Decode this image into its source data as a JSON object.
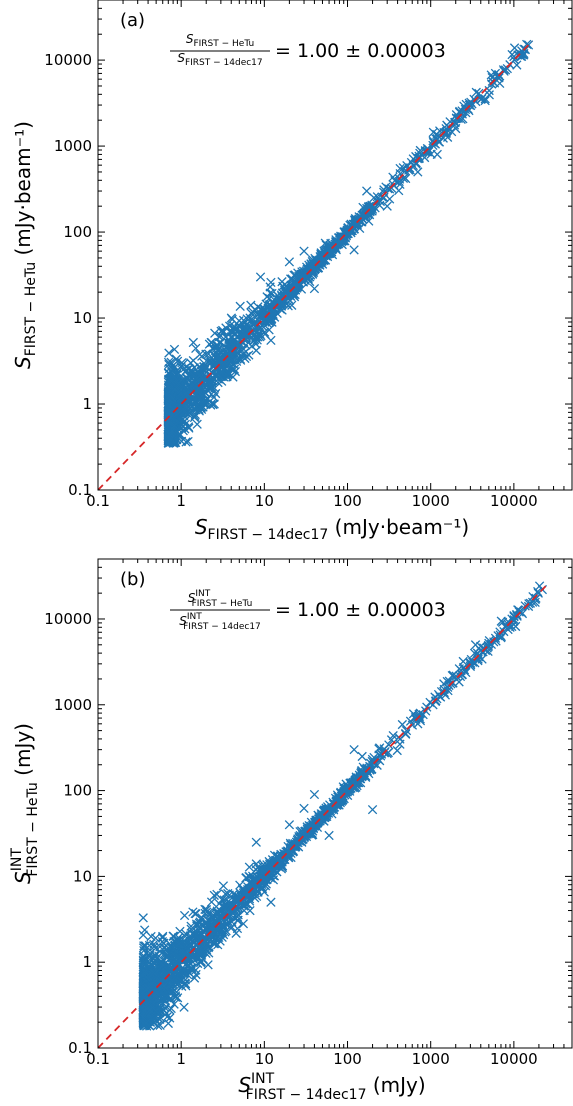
{
  "chart_data": [
    {
      "type": "scatter",
      "scale": "log-log",
      "panel_label": "(a)",
      "annotation": {
        "ratio_numerator_symbol": "S",
        "ratio_numerator_sub": "FIRST − HeTu",
        "ratio_numerator_sup": "",
        "ratio_denominator_symbol": "S",
        "ratio_denominator_sub": "FIRST − 14dec17",
        "ratio_denominator_sup": "",
        "ratio_value": "= 1.00 ± 0.00003"
      },
      "xlabel": {
        "symbol": "S",
        "sub": "FIRST − 14dec17",
        "sup": "",
        "unit": "(mJy·beam⁻¹)"
      },
      "ylabel": {
        "symbol": "S",
        "sub": "FIRST − HeTu",
        "sup": "",
        "unit": "(mJy·beam⁻¹)"
      },
      "xlim": [
        0.1,
        50000
      ],
      "ylim": [
        0.1,
        50000
      ],
      "x_ticks": [
        "0.1",
        "1",
        "10",
        "100",
        "1000",
        "10000"
      ],
      "y_ticks": [
        "0.1",
        "1",
        "10",
        "100",
        "1000",
        "10000"
      ],
      "grid": false,
      "series": [
        {
          "marker": "x",
          "color": "#1f77b4",
          "x_range": [
            0.7,
            15000
          ],
          "y_range": [
            0.35,
            15000
          ],
          "max_point": [
            15000,
            15000
          ],
          "outliers": [
            [
              170,
              300
            ],
            [
              20,
              45
            ],
            [
              12,
              26
            ],
            [
              9,
              30
            ],
            [
              30,
              60
            ],
            [
              120,
              62
            ],
            [
              1.4,
              5.2
            ],
            [
              1.1,
              2.6
            ],
            [
              700,
              500
            ],
            [
              1200,
              800
            ],
            [
              2000,
              1600
            ],
            [
              4000,
              3500
            ],
            [
              6000,
              7000
            ],
            [
              10000,
              11000
            ],
            [
              300,
              200
            ],
            [
              500,
              420
            ],
            [
              8,
              4.2
            ],
            [
              40,
              22
            ],
            [
              12,
              5.5
            ],
            [
              3,
              6.2
            ],
            [
              2.5,
              1.0
            ]
          ]
        }
      ],
      "reference_line": {
        "label": "y = x",
        "style": "dashed",
        "color": "#d62728"
      }
    },
    {
      "type": "scatter",
      "scale": "log-log",
      "panel_label": "(b)",
      "annotation": {
        "ratio_numerator_symbol": "S",
        "ratio_numerator_sub": "FIRST − HeTu",
        "ratio_numerator_sup": "INT",
        "ratio_denominator_symbol": "S",
        "ratio_denominator_sub": "FIRST − 14dec17",
        "ratio_denominator_sup": "INT",
        "ratio_value": "= 1.00 ± 0.00003"
      },
      "xlabel": {
        "symbol": "S",
        "sub": "FIRST − 14dec17",
        "sup": "INT",
        "unit": "(mJy)"
      },
      "ylabel": {
        "symbol": "S",
        "sub": "FIRST − HeTu",
        "sup": "INT",
        "unit": "(mJy)"
      },
      "xlim": [
        0.1,
        50000
      ],
      "ylim": [
        0.1,
        50000
      ],
      "x_ticks": [
        "0.1",
        "1",
        "10",
        "100",
        "1000",
        "10000"
      ],
      "y_ticks": [
        "0.1",
        "1",
        "10",
        "100",
        "1000",
        "10000"
      ],
      "grid": false,
      "series": [
        {
          "marker": "x",
          "color": "#1f77b4",
          "x_range": [
            0.35,
            22000
          ],
          "y_range": [
            0.18,
            22000
          ],
          "max_point": [
            22000,
            22000
          ],
          "outliers": [
            [
              120,
              300
            ],
            [
              150,
              250
            ],
            [
              30,
              62
            ],
            [
              20,
              40
            ],
            [
              8,
              14
            ],
            [
              100,
              110
            ],
            [
              200,
              60
            ],
            [
              12,
              5
            ],
            [
              1.1,
              3.5
            ],
            [
              1.6,
              1.3
            ],
            [
              700,
              600
            ],
            [
              1500,
              1300
            ],
            [
              3000,
              2800
            ],
            [
              5000,
              5200
            ],
            [
              9000,
              8000
            ],
            [
              15000,
              14000
            ],
            [
              300,
              270
            ],
            [
              60,
              30
            ],
            [
              0.6,
              2.0
            ],
            [
              0.4,
              0.5
            ],
            [
              2.5,
              6.0
            ],
            [
              40,
              90
            ],
            [
              8,
              25
            ]
          ]
        }
      ],
      "reference_line": {
        "label": "y = x",
        "style": "dashed",
        "color": "#d62728"
      }
    }
  ]
}
